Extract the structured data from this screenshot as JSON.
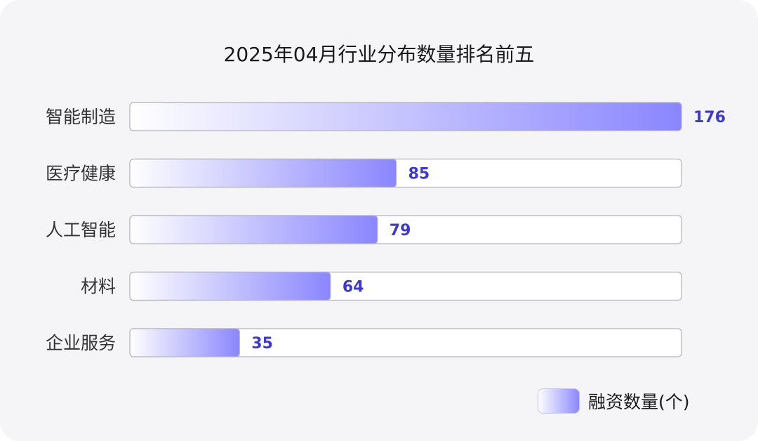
{
  "chart_data": {
    "type": "bar",
    "orientation": "horizontal",
    "title": "2025年04月行业分布数量排名前五",
    "categories": [
      "智能制造",
      "医疗健康",
      "人工智能",
      "材料",
      "企业服务"
    ],
    "series": [
      {
        "name": "融资数量(个)",
        "values": [
          176,
          85,
          79,
          64,
          35
        ]
      }
    ],
    "xlim": [
      0,
      176
    ],
    "grid": false,
    "legend_position": "bottom-right",
    "colors": {
      "bar_start": "#ffffff",
      "bar_end": "#8a86ff",
      "value_label": "#3d3acb",
      "track": "#ffffff",
      "track_border": "#b5b5be"
    }
  }
}
